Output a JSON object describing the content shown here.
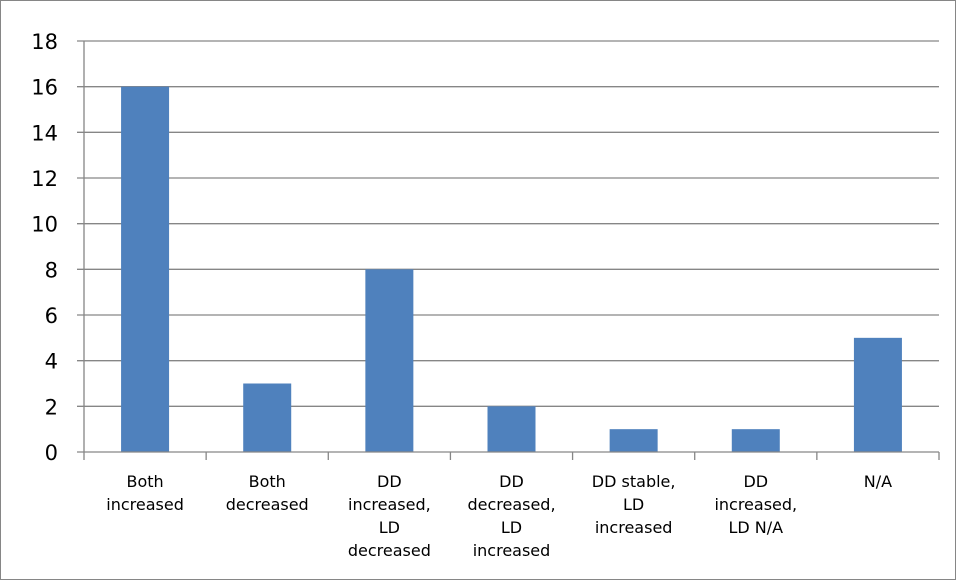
{
  "chart_data": {
    "type": "bar",
    "title": "",
    "xlabel": "",
    "ylabel": "",
    "categories": [
      [
        "Both",
        "increased"
      ],
      [
        "Both",
        "decreased"
      ],
      [
        "DD",
        "increased,",
        "LD",
        "decreased"
      ],
      [
        "DD",
        "decreased,",
        "LD",
        "increased"
      ],
      [
        "DD stable,",
        "LD",
        "increased"
      ],
      [
        "DD",
        "increased,",
        "LD N/A"
      ],
      [
        "N/A"
      ]
    ],
    "values": [
      16,
      3,
      8,
      2,
      1,
      1,
      5
    ],
    "ylim": [
      0,
      18
    ],
    "yticks": [
      "0",
      "2",
      "4",
      "6",
      "8",
      "10",
      "12",
      "14",
      "16",
      "18"
    ],
    "grid": true,
    "legend": "none",
    "colors": {
      "bar": "#4f81bd",
      "grid": "#868686",
      "axis": "#868686",
      "frame": "#868686"
    }
  }
}
